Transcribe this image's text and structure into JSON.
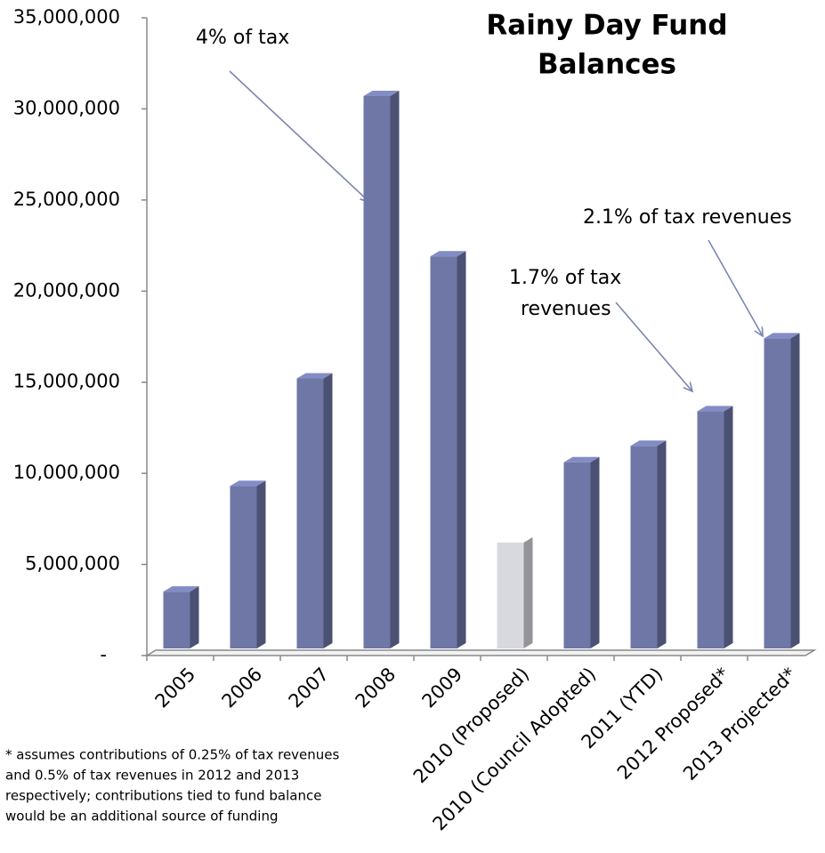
{
  "chart_data": {
    "type": "bar3d",
    "title": [
      "Rainy Day Fund",
      "Balances"
    ],
    "categories": [
      "2005",
      "2006",
      "2007",
      "2008",
      "2009",
      "2010 (Proposed)",
      "2010 (Council Adopted)",
      "2011 (YTD)",
      "2012 Proposed*",
      "2013 Projected*"
    ],
    "values": [
      3800000,
      9600000,
      15500000,
      31000000,
      22200000,
      6500000,
      10900000,
      11800000,
      13700000,
      17700000
    ],
    "colors": [
      "#6f77a7",
      "#6f77a7",
      "#6f77a7",
      "#6f77a7",
      "#6f77a7",
      "#d8d8df",
      "#6f77a7",
      "#6f77a7",
      "#6f77a7",
      "#6f77a7"
    ],
    "ylim": [
      0,
      35000000
    ],
    "yticks": [
      {
        "value": 0,
        "label": "-"
      },
      {
        "value": 5000000,
        "label": "5,000,000"
      },
      {
        "value": 10000000,
        "label": "10,000,000"
      },
      {
        "value": 15000000,
        "label": "15,000,000"
      },
      {
        "value": 20000000,
        "label": "20,000,000"
      },
      {
        "value": 25000000,
        "label": "25,000,000"
      },
      {
        "value": 30000000,
        "label": "30,000,000"
      },
      {
        "value": 35000000,
        "label": "35,000,000"
      }
    ],
    "annotations": [
      [
        "4% of tax"
      ],
      [
        "2.1% of tax revenues"
      ],
      [
        "1.7% of tax",
        "revenues"
      ]
    ],
    "footnote": [
      "* assumes contributions of 0.25% of tax revenues",
      "and 0.5% of tax revenues in 2012 and 2013",
      "respectively;  contributions tied to fund balance",
      "would  be an additional source of funding"
    ]
  }
}
